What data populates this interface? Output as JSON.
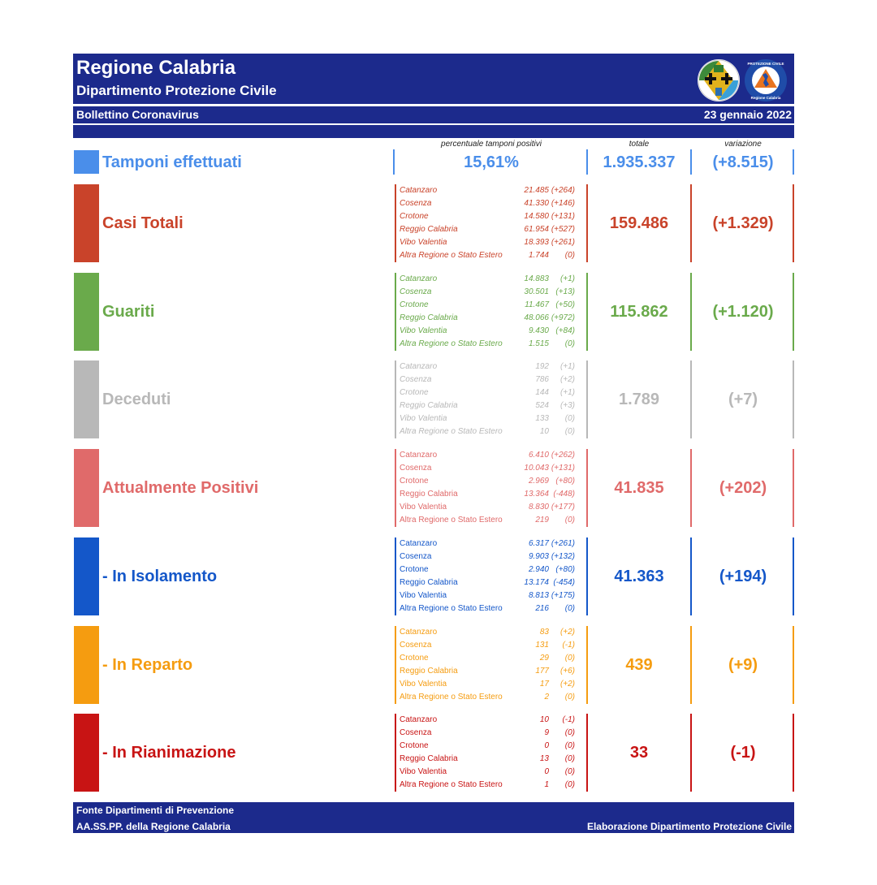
{
  "header": {
    "title": "Regione Calabria",
    "subtitle": "Dipartimento Protezione Civile",
    "bulletin": "Bollettino Coronavirus",
    "date": "23 gennaio 2022"
  },
  "logos": {
    "left": "regione-calabria-coat-of-arms",
    "right": "protezione-civile-regione-calabria-logo",
    "right_text_top": "PROTEZIONE CIVILE",
    "right_text_bottom": "Regione Calabria"
  },
  "columns": {
    "positivity": "percentuale tamponi positivi",
    "total": "totale",
    "variation": "variazione"
  },
  "tamponi": {
    "label": "Tamponi effettuati",
    "positivity": "15,61%",
    "total": "1.935.337",
    "variation": "(+8.515)",
    "color": "#4a8eea"
  },
  "sections": [
    {
      "label": "Casi Totali",
      "color": "#c9432a",
      "italic_labels": true,
      "total": "159.486",
      "variation": "(+1.329)",
      "provinces": [
        {
          "name": "Catanzaro",
          "value": "21.485",
          "delta": "(+264)"
        },
        {
          "name": "Cosenza",
          "value": "41.330",
          "delta": "(+146)"
        },
        {
          "name": "Crotone",
          "value": "14.580",
          "delta": "(+131)"
        },
        {
          "name": "Reggio Calabria",
          "value": "61.954",
          "delta": "(+527)"
        },
        {
          "name": "Vibo Valentia",
          "value": "18.393",
          "delta": "(+261)"
        },
        {
          "name": "Altra Regione o Stato Estero",
          "value": "1.744",
          "delta": "(0)"
        }
      ]
    },
    {
      "label": "Guariti",
      "color": "#6aaa4b",
      "italic_labels": true,
      "total": "115.862",
      "variation": "(+1.120)",
      "provinces": [
        {
          "name": "Catanzaro",
          "value": "14.883",
          "delta": "(+1)"
        },
        {
          "name": "Cosenza",
          "value": "30.501",
          "delta": "(+13)"
        },
        {
          "name": "Crotone",
          "value": "11.467",
          "delta": "(+50)"
        },
        {
          "name": "Reggio Calabria",
          "value": "48.066",
          "delta": "(+972)"
        },
        {
          "name": "Vibo Valentia",
          "value": "9.430",
          "delta": "(+84)"
        },
        {
          "name": "Altra Regione o Stato Estero",
          "value": "1.515",
          "delta": "(0)"
        }
      ]
    },
    {
      "label": "Deceduti",
      "color": "#b8b8b8",
      "italic_labels": true,
      "total": "1.789",
      "variation": "(+7)",
      "provinces": [
        {
          "name": "Catanzaro",
          "value": "192",
          "delta": "(+1)"
        },
        {
          "name": "Cosenza",
          "value": "786",
          "delta": "(+2)"
        },
        {
          "name": "Crotone",
          "value": "144",
          "delta": "(+1)"
        },
        {
          "name": "Reggio Calabria",
          "value": "524",
          "delta": "(+3)"
        },
        {
          "name": "Vibo Valentia",
          "value": "133",
          "delta": "(0)"
        },
        {
          "name": "Altra Regione o Stato Estero",
          "value": "10",
          "delta": "(0)"
        }
      ]
    },
    {
      "label": "Attualmente Positivi",
      "color": "#e06a6a",
      "italic_labels": false,
      "total": "41.835",
      "variation": "(+202)",
      "provinces": [
        {
          "name": "Catanzaro",
          "value": "6.410",
          "delta": "(+262)"
        },
        {
          "name": "Cosenza",
          "value": "10.043",
          "delta": "(+131)"
        },
        {
          "name": "Crotone",
          "value": "2.969",
          "delta": "(+80)"
        },
        {
          "name": "Reggio Calabria",
          "value": "13.364",
          "delta": "(-448)"
        },
        {
          "name": "Vibo Valentia",
          "value": "8.830",
          "delta": "(+177)"
        },
        {
          "name": "Altra Regione o Stato Estero",
          "value": "219",
          "delta": "(0)"
        }
      ]
    },
    {
      "label": " - In Isolamento",
      "color": "#1457c9",
      "italic_labels": false,
      "total": "41.363",
      "variation": "(+194)",
      "provinces": [
        {
          "name": "Catanzaro",
          "value": "6.317",
          "delta": "(+261)"
        },
        {
          "name": "Cosenza",
          "value": "9.903",
          "delta": "(+132)"
        },
        {
          "name": "Crotone",
          "value": "2.940",
          "delta": "(+80)"
        },
        {
          "name": "Reggio Calabria",
          "value": "13.174",
          "delta": "(-454)"
        },
        {
          "name": "Vibo Valentia",
          "value": "8.813",
          "delta": "(+175)"
        },
        {
          "name": "Altra Regione o Stato Estero",
          "value": "216",
          "delta": "(0)"
        }
      ]
    },
    {
      "label": " - In Reparto",
      "color": "#f59c10",
      "italic_labels": false,
      "total": "439",
      "variation": "(+9)",
      "provinces": [
        {
          "name": "Catanzaro",
          "value": "83",
          "delta": "(+2)"
        },
        {
          "name": "Cosenza",
          "value": "131",
          "delta": "(-1)"
        },
        {
          "name": "Crotone",
          "value": "29",
          "delta": "(0)"
        },
        {
          "name": "Reggio Calabria",
          "value": "177",
          "delta": "(+6)"
        },
        {
          "name": "Vibo Valentia",
          "value": "17",
          "delta": "(+2)"
        },
        {
          "name": "Altra Regione o Stato Estero",
          "value": "2",
          "delta": "(0)"
        }
      ]
    },
    {
      "label": " - In Rianimazione",
      "color": "#c81414",
      "italic_labels": false,
      "total": "33",
      "variation": "(-1)",
      "provinces": [
        {
          "name": "Catanzaro",
          "value": "10",
          "delta": "(-1)"
        },
        {
          "name": "Cosenza",
          "value": "9",
          "delta": "(0)"
        },
        {
          "name": "Crotone",
          "value": "0",
          "delta": "(0)"
        },
        {
          "name": "Reggio Calabria",
          "value": "13",
          "delta": "(0)"
        },
        {
          "name": "Vibo Valentia",
          "value": "0",
          "delta": "(0)"
        },
        {
          "name": "Altra Regione o Stato Estero",
          "value": "1",
          "delta": "(0)"
        }
      ]
    }
  ],
  "footer": {
    "line1": "Fonte Dipartimenti di Prevenzione",
    "line2": "AA.SS.PP.  della Regione Calabria",
    "right": "Elaborazione Dipartimento Protezione Civile"
  }
}
